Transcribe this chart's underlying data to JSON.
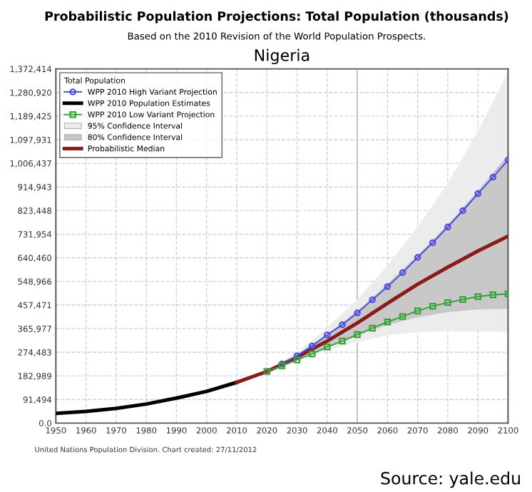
{
  "chart_data": {
    "type": "line",
    "title": "Probabilistic Population Projections: Total Population (thousands)",
    "subtitle": "Based on the 2010 Revision of the World Population Prospects.",
    "annotations": [
      "Nigeria",
      "United Nations Population Division. Chart created: 27/11/2012",
      "Source: yale.edu"
    ],
    "legend_title": "Total Population",
    "legend": "top left",
    "grid": true,
    "xlim": [
      1950,
      2100
    ],
    "xticks": [
      1950,
      1960,
      1970,
      1980,
      1990,
      2000,
      2010,
      2020,
      2030,
      2040,
      2050,
      2060,
      2070,
      2080,
      2090,
      2100
    ],
    "ylim": [
      0,
      1372414
    ],
    "yticks": [
      {
        "value": 0,
        "label": "0.0"
      },
      {
        "value": 91494,
        "label": "91,494"
      },
      {
        "value": 182989,
        "label": "182,989"
      },
      {
        "value": 274483,
        "label": "274,483"
      },
      {
        "value": 365977,
        "label": "365,977"
      },
      {
        "value": 457471,
        "label": "457,471"
      },
      {
        "value": 548966,
        "label": "548,966"
      },
      {
        "value": 640460,
        "label": "640,460"
      },
      {
        "value": 731954,
        "label": "731,954"
      },
      {
        "value": 823448,
        "label": "823,448"
      },
      {
        "value": 914943,
        "label": "914,943"
      },
      {
        "value": 1006437,
        "label": "1,006,437"
      },
      {
        "value": 1097931,
        "label": "1,097,931"
      },
      {
        "value": 1189425,
        "label": "1,189,425"
      },
      {
        "value": 1280920,
        "label": "1,280,920"
      },
      {
        "value": 1372414,
        "label": "1,372,414"
      }
    ],
    "ref_lines": [
      {
        "axis": "x",
        "value": 2050,
        "label": null,
        "color": "#b0b0b0",
        "line_style": "solid"
      }
    ],
    "series": [
      {
        "name": "WPP 2010 High Variant Projection",
        "color": "#4a4ae0",
        "marker": "circle",
        "x": [
          2025,
          2030,
          2035,
          2040,
          2045,
          2050,
          2055,
          2060,
          2065,
          2070,
          2075,
          2080,
          2085,
          2090,
          2095,
          2100
        ],
        "values": [
          229000,
          261000,
          299000,
          342000,
          381000,
          427000,
          478000,
          529000,
          583000,
          642000,
          699000,
          760000,
          823000,
          889000,
          953000,
          1019000
        ]
      },
      {
        "name": "WPP 2010 Population Estimates",
        "color": "#000000",
        "marker": "none",
        "x": [
          1950,
          1960,
          1970,
          1980,
          1990,
          2000,
          2010
        ],
        "values": [
          38000,
          45000,
          57000,
          74000,
          97000,
          123000,
          158000
        ]
      },
      {
        "name": "WPP 2010 Low Variant Projection",
        "color": "#3aa03a",
        "marker": "square",
        "x": [
          2020,
          2025,
          2030,
          2035,
          2040,
          2045,
          2050,
          2055,
          2060,
          2065,
          2070,
          2075,
          2080,
          2085,
          2090,
          2095,
          2100
        ],
        "values": [
          200000,
          222000,
          245000,
          268000,
          295000,
          318000,
          343000,
          368000,
          392000,
          413000,
          435000,
          453000,
          467000,
          479000,
          490000,
          497000,
          501000
        ]
      },
      {
        "name": "95% Confidence Interval",
        "color": "#ececec",
        "x": [
          2010,
          2020,
          2030,
          2040,
          2050,
          2060,
          2070,
          2080,
          2090,
          2100
        ],
        "values": [
          null,
          null,
          null,
          null,
          null,
          null,
          null,
          null,
          null,
          null
        ],
        "lower": [
          158000,
          195000,
          240000,
          280000,
          315000,
          340000,
          352000,
          356000,
          355000,
          354000
        ],
        "upper": [
          158000,
          205000,
          275000,
          370000,
          480000,
          610000,
          760000,
          930000,
          1130000,
          1360000
        ]
      },
      {
        "name": "80% Confidence Interval",
        "color": "#c8c8c8",
        "x": [
          2010,
          2020,
          2030,
          2040,
          2050,
          2060,
          2070,
          2080,
          2090,
          2100
        ],
        "values": [
          null,
          null,
          null,
          null,
          null,
          null,
          null,
          null,
          null,
          null
        ],
        "lower": [
          158000,
          198000,
          247000,
          295000,
          340000,
          380000,
          410000,
          430000,
          440000,
          443000
        ],
        "upper": [
          158000,
          202000,
          265000,
          345000,
          435000,
          540000,
          650000,
          770000,
          900000,
          1040000
        ]
      },
      {
        "name": "Probabilistic Median",
        "color": "#8b1a1a",
        "marker": "none",
        "x": [
          2010,
          2020,
          2030,
          2040,
          2050,
          2060,
          2070,
          2080,
          2090,
          2100
        ],
        "values": [
          158000,
          200000,
          255000,
          318000,
          388000,
          464000,
          538000,
          604000,
          667000,
          724000
        ]
      }
    ]
  }
}
